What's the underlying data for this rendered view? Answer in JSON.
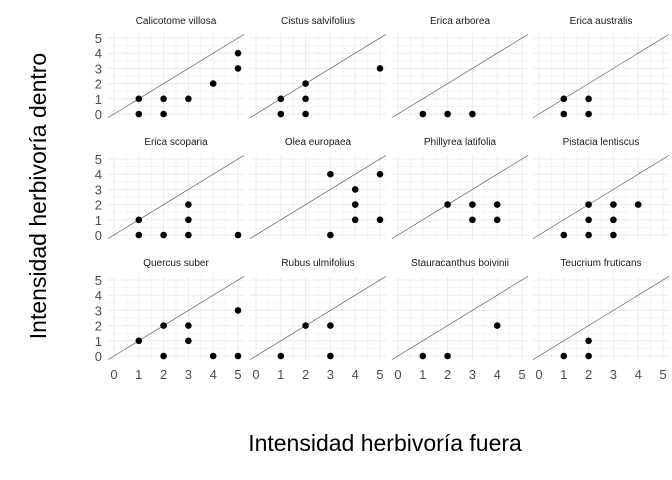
{
  "chart_data": {
    "type": "scatter",
    "layout": "facet-grid 3x4",
    "xlabel": "Intensidad herbivoría fuera",
    "ylabel": "Intensidad herbivoría dentro",
    "xlim": [
      0,
      5
    ],
    "ylim": [
      0,
      5
    ],
    "x_ticks": [
      0,
      1,
      2,
      3,
      4,
      5
    ],
    "y_ticks": [
      0,
      1,
      2,
      3,
      4,
      5
    ],
    "reference_line": "y = x",
    "grid": true,
    "theme": "minimal",
    "point_color": "#000000",
    "grid_color": "#ebebeb",
    "line_color": "#4d4d4d",
    "panels": [
      {
        "title": "Calicotome villosa",
        "points": [
          [
            1,
            0
          ],
          [
            1,
            1
          ],
          [
            2,
            0
          ],
          [
            2,
            1
          ],
          [
            3,
            1
          ],
          [
            4,
            2
          ],
          [
            5,
            3
          ],
          [
            5,
            4
          ]
        ]
      },
      {
        "title": "Cistus salvifolius",
        "points": [
          [
            1,
            0
          ],
          [
            1,
            1
          ],
          [
            2,
            0
          ],
          [
            2,
            1
          ],
          [
            2,
            2
          ],
          [
            5,
            3
          ]
        ]
      },
      {
        "title": "Erica arborea",
        "points": [
          [
            1,
            0
          ],
          [
            2,
            0
          ],
          [
            3,
            0
          ]
        ]
      },
      {
        "title": "Erica australis",
        "points": [
          [
            1,
            0
          ],
          [
            1,
            1
          ],
          [
            2,
            0
          ],
          [
            2,
            1
          ]
        ]
      },
      {
        "title": "Erica scoparia",
        "points": [
          [
            1,
            0
          ],
          [
            1,
            1
          ],
          [
            2,
            0
          ],
          [
            3,
            0
          ],
          [
            3,
            1
          ],
          [
            3,
            2
          ],
          [
            5,
            0
          ]
        ]
      },
      {
        "title": "Olea europaea",
        "points": [
          [
            3,
            0
          ],
          [
            3,
            4
          ],
          [
            4,
            1
          ],
          [
            4,
            2
          ],
          [
            4,
            3
          ],
          [
            5,
            1
          ],
          [
            5,
            4
          ]
        ]
      },
      {
        "title": "Phillyrea latifolia",
        "points": [
          [
            2,
            2
          ],
          [
            3,
            1
          ],
          [
            3,
            2
          ],
          [
            4,
            1
          ],
          [
            4,
            2
          ]
        ]
      },
      {
        "title": "Pistacia lentiscus",
        "points": [
          [
            1,
            0
          ],
          [
            2,
            0
          ],
          [
            2,
            1
          ],
          [
            2,
            2
          ],
          [
            3,
            0
          ],
          [
            3,
            1
          ],
          [
            3,
            2
          ],
          [
            4,
            2
          ]
        ]
      },
      {
        "title": "Quercus suber",
        "points": [
          [
            1,
            1
          ],
          [
            2,
            0
          ],
          [
            2,
            2
          ],
          [
            3,
            1
          ],
          [
            3,
            2
          ],
          [
            4,
            0
          ],
          [
            5,
            0
          ],
          [
            5,
            3
          ]
        ]
      },
      {
        "title": "Rubus ulmifolius",
        "points": [
          [
            1,
            0
          ],
          [
            2,
            2
          ],
          [
            3,
            0
          ],
          [
            3,
            2
          ]
        ]
      },
      {
        "title": "Stauracanthus boivinii",
        "points": [
          [
            1,
            0
          ],
          [
            2,
            0
          ],
          [
            4,
            2
          ]
        ]
      },
      {
        "title": "Teucrium fruticans",
        "points": [
          [
            1,
            0
          ],
          [
            2,
            0
          ],
          [
            2,
            1
          ]
        ]
      }
    ]
  }
}
